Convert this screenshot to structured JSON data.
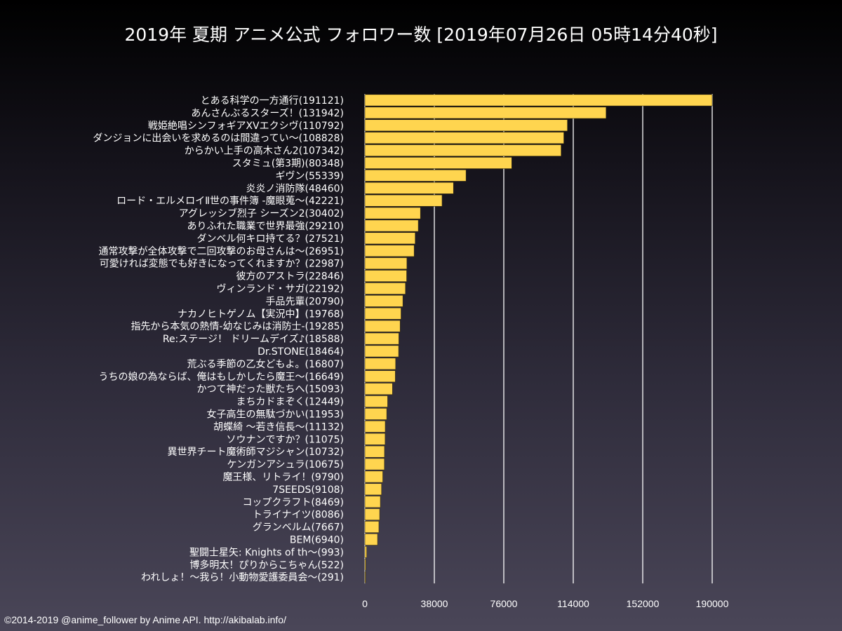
{
  "chart_data": {
    "type": "bar",
    "orientation": "horizontal",
    "title": "2019年 夏期 アニメ公式 フォロワー数 [2019年07月26日 05時14分40秒]",
    "bar_color": "#ffd54f",
    "xlim": [
      0,
      190000
    ],
    "xticks": [
      0,
      38000,
      76000,
      114000,
      152000,
      190000
    ],
    "grid": "vertical",
    "categories": [
      "とある科学の一方通行(191121)",
      "あんさんぶるスターズ！(131942)",
      "戦姫絶唱シンフォギアXVエクシヴ(110792)",
      "ダンジョンに出会いを求めるのは間違ってい〜(108828)",
      "からかい上手の高木さん2(107342)",
      "スタミュ(第3期)(80348)",
      "ギヴン(55339)",
      "炎炎ノ消防隊(48460)",
      "ロード・エルメロイⅡ世の事件簿 -魔眼蒐〜(42221)",
      "アグレッシブ烈子 シーズン2(30402)",
      "ありふれた職業で世界最強(29210)",
      "ダンベル何キロ持てる？(27521)",
      "通常攻撃が全体攻撃で二回攻撃のお母さんは〜(26951)",
      "可愛ければ変態でも好きになってくれますか？(22987)",
      "彼方のアストラ(22846)",
      "ヴィンランド・サガ(22192)",
      "手品先輩(20790)",
      "ナカノヒトゲノム【実況中】(19768)",
      "指先から本気の熱情-幼なじみは消防士-(19285)",
      "Re:ステージ！ ドリームデイズ♪(18588)",
      "Dr.STONE(18464)",
      "荒ぶる季節の乙女どもよ。(16807)",
      "うちの娘の為ならば、俺はもしかしたら魔王〜(16649)",
      "かつて神だった獣たちへ(15093)",
      "まちカドまぞく(12449)",
      "女子高生の無駄づかい(11953)",
      "胡蝶綺 〜若き信長〜(11132)",
      "ソウナンですか？(11075)",
      "異世界チート魔術師マジシャン(10732)",
      "ケンガンアシュラ(10675)",
      "魔王様、リトライ！(9790)",
      "7SEEDS(9108)",
      "コップクラフト(8469)",
      "トライナイツ(8086)",
      "グランベルム(7667)",
      "BEM(6940)",
      "聖闘士星矢: Knights of th〜(993)",
      "博多明太！ぴりからこちゃん(522)",
      "われしょ！〜我ら！小動物愛護委員会〜(291)"
    ],
    "values": [
      191121,
      131942,
      110792,
      108828,
      107342,
      80348,
      55339,
      48460,
      42221,
      30402,
      29210,
      27521,
      26951,
      22987,
      22846,
      22192,
      20790,
      19768,
      19285,
      18588,
      18464,
      16807,
      16649,
      15093,
      12449,
      11953,
      11132,
      11075,
      10732,
      10675,
      9790,
      9108,
      8469,
      8086,
      7667,
      6940,
      993,
      522,
      291
    ]
  },
  "footer": "©2014-2019 @anime_follower by Anime API. http://akibalab.info/"
}
